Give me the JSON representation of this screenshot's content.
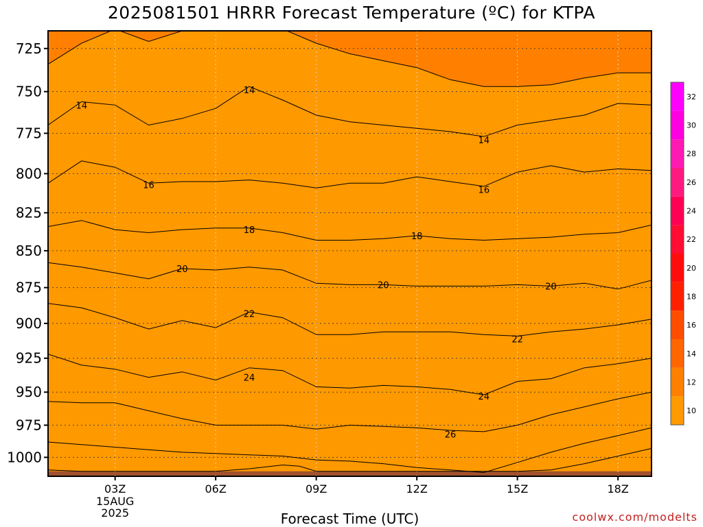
{
  "title": "2025081501 HRRR Forecast Temperature (ºC) for KTPA",
  "credit": "coolwx.com/modelts",
  "chart_data": {
    "type": "heatmap",
    "title": "2025081501 HRRR Forecast Temperature (ºC) for KTPA",
    "xlabel": "Forecast Time (UTC)",
    "ylabel": "",
    "x_unit": "hours since 2025-08-15 00Z",
    "xlim": [
      1,
      19
    ],
    "ylim": [
      1015,
      715
    ],
    "y_scale": "log",
    "x_ticks": [
      {
        "value": 3,
        "label": "03Z",
        "sublabels": [
          "15AUG",
          "2025"
        ]
      },
      {
        "value": 6,
        "label": "06Z",
        "sublabels": []
      },
      {
        "value": 9,
        "label": "09Z",
        "sublabels": []
      },
      {
        "value": 12,
        "label": "12Z",
        "sublabels": []
      },
      {
        "value": 15,
        "label": "15Z",
        "sublabels": []
      },
      {
        "value": 18,
        "label": "18Z",
        "sublabels": []
      }
    ],
    "y_ticks": [
      725,
      750,
      775,
      800,
      825,
      850,
      875,
      900,
      925,
      950,
      975,
      1000
    ],
    "grid": true,
    "ground_top_pressure": 1011,
    "colorbar": {
      "ticks": [
        10,
        12,
        14,
        16,
        18,
        20,
        22,
        24,
        26,
        28,
        30,
        32
      ],
      "bins": [
        {
          "min": 9,
          "max": 11,
          "color": "#ff9900"
        },
        {
          "min": 11,
          "max": 13,
          "color": "#ff8000"
        },
        {
          "min": 13,
          "max": 15,
          "color": "#ff6600"
        },
        {
          "min": 15,
          "max": 17,
          "color": "#ff4d00"
        },
        {
          "min": 17,
          "max": 19,
          "color": "#ff2000"
        },
        {
          "min": 19,
          "max": 21,
          "color": "#ff0d0d"
        },
        {
          "min": 21,
          "max": 23,
          "color": "#ff0d33"
        },
        {
          "min": 23,
          "max": 25,
          "color": "#ff0055"
        },
        {
          "min": 25,
          "max": 27,
          "color": "#ff1a80"
        },
        {
          "min": 27,
          "max": 29,
          "color": "#ff1ab3"
        },
        {
          "min": 29,
          "max": 31,
          "color": "#ff00e0"
        },
        {
          "min": 31,
          "max": 33,
          "color": "#ff00ff"
        }
      ]
    },
    "contour_labels": [
      {
        "value": 14,
        "x": 2.0,
        "p": 758
      },
      {
        "value": 14,
        "x": 7.0,
        "p": 749
      },
      {
        "value": 14,
        "x": 14.0,
        "p": 779
      },
      {
        "value": 16,
        "x": 4.0,
        "p": 807
      },
      {
        "value": 16,
        "x": 14.0,
        "p": 810
      },
      {
        "value": 18,
        "x": 7.0,
        "p": 836
      },
      {
        "value": 18,
        "x": 12.0,
        "p": 840
      },
      {
        "value": 20,
        "x": 5.0,
        "p": 862
      },
      {
        "value": 20,
        "x": 11.0,
        "p": 873
      },
      {
        "value": 20,
        "x": 16.0,
        "p": 874
      },
      {
        "value": 22,
        "x": 7.0,
        "p": 893
      },
      {
        "value": 22,
        "x": 15.0,
        "p": 911
      },
      {
        "value": 24,
        "x": 7.0,
        "p": 939
      },
      {
        "value": 24,
        "x": 14.0,
        "p": 953
      },
      {
        "value": 26,
        "x": 13.0,
        "p": 982
      }
    ],
    "contours": [
      {
        "value": 12,
        "points": [
          [
            1,
            734
          ],
          [
            2,
            722
          ],
          [
            3,
            714
          ],
          [
            4,
            721
          ],
          [
            5,
            715
          ],
          [
            6,
            714
          ],
          [
            7,
            714
          ],
          [
            8,
            714
          ],
          [
            9,
            722
          ],
          [
            10,
            728
          ],
          [
            11,
            732
          ],
          [
            12,
            736
          ],
          [
            13,
            743
          ],
          [
            14,
            747
          ],
          [
            15,
            747
          ],
          [
            16,
            746
          ],
          [
            17,
            742
          ],
          [
            18,
            739
          ],
          [
            19,
            739
          ]
        ]
      },
      {
        "value": 14,
        "points": [
          [
            1,
            770
          ],
          [
            2,
            756
          ],
          [
            3,
            758
          ],
          [
            4,
            770
          ],
          [
            5,
            766
          ],
          [
            6,
            760
          ],
          [
            7,
            747
          ],
          [
            8,
            755
          ],
          [
            9,
            764
          ],
          [
            10,
            768
          ],
          [
            11,
            770
          ],
          [
            12,
            772
          ],
          [
            13,
            774
          ],
          [
            14,
            777
          ],
          [
            15,
            770
          ],
          [
            16,
            767
          ],
          [
            17,
            764
          ],
          [
            18,
            757
          ],
          [
            19,
            758
          ]
        ]
      },
      {
        "value": 16,
        "points": [
          [
            1,
            806
          ],
          [
            2,
            792
          ],
          [
            3,
            796
          ],
          [
            4,
            806
          ],
          [
            5,
            805
          ],
          [
            6,
            805
          ],
          [
            7,
            804
          ],
          [
            8,
            806
          ],
          [
            9,
            809
          ],
          [
            10,
            806
          ],
          [
            11,
            806
          ],
          [
            12,
            802
          ],
          [
            13,
            805
          ],
          [
            14,
            808
          ],
          [
            15,
            799
          ],
          [
            16,
            795
          ],
          [
            17,
            799
          ],
          [
            18,
            797
          ],
          [
            19,
            798
          ]
        ]
      },
      {
        "value": 18,
        "points": [
          [
            1,
            834
          ],
          [
            2,
            830
          ],
          [
            3,
            836
          ],
          [
            4,
            838
          ],
          [
            5,
            836
          ],
          [
            6,
            835
          ],
          [
            7,
            835
          ],
          [
            8,
            838
          ],
          [
            9,
            843
          ],
          [
            10,
            843
          ],
          [
            11,
            842
          ],
          [
            12,
            840
          ],
          [
            13,
            842
          ],
          [
            14,
            843
          ],
          [
            15,
            842
          ],
          [
            16,
            841
          ],
          [
            17,
            839
          ],
          [
            18,
            838
          ],
          [
            19,
            833
          ]
        ]
      },
      {
        "value": 20,
        "points": [
          [
            1,
            858
          ],
          [
            2,
            861
          ],
          [
            3,
            865
          ],
          [
            4,
            869
          ],
          [
            5,
            862
          ],
          [
            6,
            863
          ],
          [
            7,
            861
          ],
          [
            8,
            863
          ],
          [
            9,
            872
          ],
          [
            10,
            873
          ],
          [
            11,
            873
          ],
          [
            12,
            874
          ],
          [
            13,
            874
          ],
          [
            14,
            874
          ],
          [
            15,
            873
          ],
          [
            16,
            874
          ],
          [
            17,
            872
          ],
          [
            18,
            876
          ],
          [
            19,
            870
          ]
        ]
      },
      {
        "value": 22,
        "points": [
          [
            1,
            886
          ],
          [
            2,
            889
          ],
          [
            3,
            896
          ],
          [
            4,
            904
          ],
          [
            5,
            898
          ],
          [
            6,
            903
          ],
          [
            7,
            892
          ],
          [
            8,
            896
          ],
          [
            9,
            908
          ],
          [
            10,
            908
          ],
          [
            11,
            906
          ],
          [
            12,
            906
          ],
          [
            13,
            906
          ],
          [
            14,
            908
          ],
          [
            15,
            909
          ],
          [
            16,
            906
          ],
          [
            17,
            904
          ],
          [
            18,
            901
          ],
          [
            19,
            897
          ]
        ]
      },
      {
        "value": 24,
        "points": [
          [
            1,
            922
          ],
          [
            2,
            930
          ],
          [
            3,
            933
          ],
          [
            4,
            939
          ],
          [
            5,
            935
          ],
          [
            6,
            941
          ],
          [
            7,
            932
          ],
          [
            8,
            934
          ],
          [
            9,
            946
          ],
          [
            10,
            947
          ],
          [
            11,
            945
          ],
          [
            12,
            946
          ],
          [
            13,
            948
          ],
          [
            14,
            952
          ],
          [
            15,
            942
          ],
          [
            16,
            940
          ],
          [
            17,
            932
          ],
          [
            18,
            929
          ],
          [
            19,
            925
          ]
        ]
      },
      {
        "value": 26,
        "points": [
          [
            1,
            957
          ],
          [
            2,
            958
          ],
          [
            3,
            958
          ],
          [
            4,
            964
          ],
          [
            5,
            970
          ],
          [
            6,
            975
          ],
          [
            7,
            975
          ],
          [
            8,
            975
          ],
          [
            9,
            978
          ],
          [
            10,
            975
          ],
          [
            11,
            976
          ],
          [
            12,
            977
          ],
          [
            13,
            979
          ],
          [
            14,
            980
          ],
          [
            15,
            975
          ],
          [
            16,
            967
          ],
          [
            17,
            961
          ],
          [
            18,
            955
          ],
          [
            19,
            950
          ]
        ]
      },
      {
        "value": 28,
        "points": [
          [
            1,
            988
          ],
          [
            2,
            990
          ],
          [
            3,
            992
          ],
          [
            4,
            994
          ],
          [
            5,
            996
          ],
          [
            6,
            997
          ],
          [
            7,
            998
          ],
          [
            8,
            999
          ],
          [
            9,
            1002
          ],
          [
            10,
            1003
          ],
          [
            11,
            1005
          ],
          [
            12,
            1008
          ],
          [
            13,
            1010
          ],
          [
            14,
            1012
          ],
          [
            15,
            1004
          ],
          [
            16,
            996
          ],
          [
            17,
            989
          ],
          [
            18,
            983
          ],
          [
            19,
            977
          ]
        ]
      },
      {
        "value": 30,
        "points": [
          [
            1,
            1010
          ],
          [
            2,
            1011
          ],
          [
            3,
            1011
          ],
          [
            4,
            1011
          ],
          [
            5,
            1011
          ],
          [
            6,
            1011
          ],
          [
            7,
            1009
          ],
          [
            8,
            1006
          ],
          [
            8.5,
            1007
          ],
          [
            9,
            1011
          ],
          [
            13,
            1011
          ],
          [
            13,
            1011
          ],
          [
            14,
            1011
          ],
          [
            15,
            1011
          ],
          [
            16,
            1010
          ],
          [
            17,
            1005
          ],
          [
            18,
            999
          ],
          [
            19,
            993
          ]
        ]
      }
    ]
  }
}
